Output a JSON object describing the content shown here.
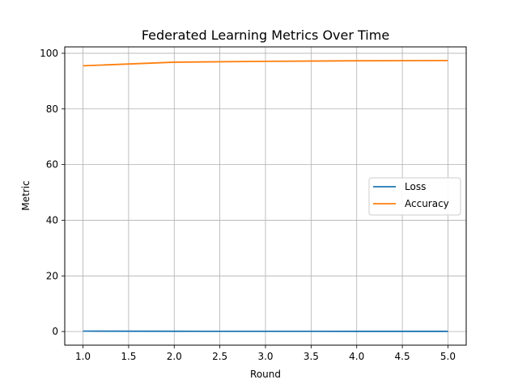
{
  "chart_data": {
    "type": "line",
    "title": "Federated Learning Metrics Over Time",
    "xlabel": "Round",
    "ylabel": "Metric",
    "x": [
      1,
      2,
      3,
      4,
      5
    ],
    "xlim": [
      0.8,
      5.2
    ],
    "ylim": [
      -4.9,
      102.3
    ],
    "xticks": [
      "1.0",
      "1.5",
      "2.0",
      "2.5",
      "3.0",
      "3.5",
      "4.0",
      "4.5",
      "5.0"
    ],
    "yticks": [
      "0",
      "20",
      "40",
      "60",
      "80",
      "100"
    ],
    "grid": true,
    "legend_position": "center-right",
    "series": [
      {
        "name": "Loss",
        "color": "#1f77b4",
        "values": [
          0.15,
          0.09,
          0.07,
          0.06,
          0.05
        ]
      },
      {
        "name": "Accuracy",
        "color": "#ff7f0e",
        "values": [
          95.5,
          96.8,
          97.1,
          97.3,
          97.4
        ]
      }
    ]
  }
}
